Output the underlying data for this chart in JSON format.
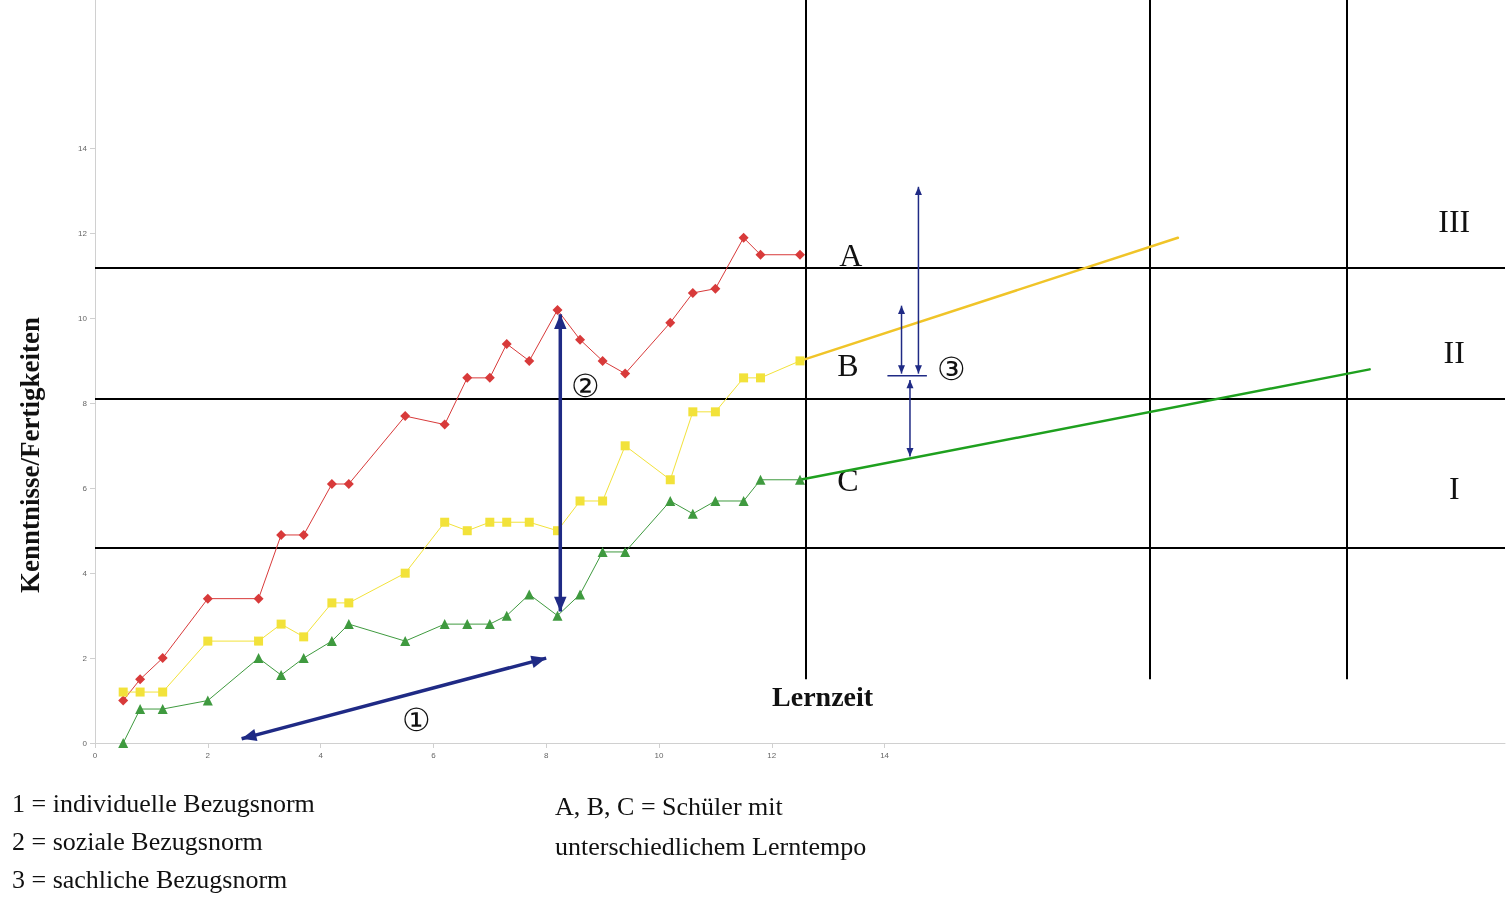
{
  "chart_data": {
    "type": "line",
    "xlabel": "Lernzeit",
    "ylabel": "Kenntnisse/Fertigkeiten",
    "xlim": [
      0,
      25
    ],
    "xticks": [
      0,
      2,
      4,
      6,
      8,
      10,
      12,
      14
    ],
    "ylim": [
      0,
      17.5
    ],
    "yticks": [
      0,
      2,
      4,
      6,
      8,
      10,
      12,
      14
    ],
    "grid": false,
    "series": [
      {
        "color": "#d83a3a",
        "marker": "diamond",
        "x": [
          0.5,
          0.8,
          1.2,
          2.0,
          2.9,
          3.3,
          3.7,
          4.2,
          4.5,
          5.5,
          6.2,
          6.6,
          7.0,
          7.3,
          7.7,
          8.2,
          8.6,
          9.0,
          9.4,
          10.2,
          10.6,
          11.0,
          11.5,
          11.8,
          12.5
        ],
        "values": [
          1.0,
          1.5,
          2.0,
          3.4,
          3.4,
          4.9,
          4.9,
          6.1,
          6.1,
          7.7,
          7.5,
          8.6,
          8.6,
          9.4,
          9.0,
          10.2,
          9.5,
          9.0,
          8.7,
          9.9,
          10.6,
          10.7,
          11.9,
          11.5,
          11.5
        ]
      },
      {
        "color": "#f2e23a",
        "marker": "square",
        "x": [
          0.5,
          0.8,
          1.2,
          2.0,
          2.9,
          3.3,
          3.7,
          4.2,
          4.5,
          5.5,
          6.2,
          6.6,
          7.0,
          7.3,
          7.7,
          8.2,
          8.6,
          9.0,
          9.4,
          10.2,
          10.6,
          11.0,
          11.5,
          11.8,
          12.5
        ],
        "values": [
          1.2,
          1.2,
          1.2,
          2.4,
          2.4,
          2.8,
          2.5,
          3.3,
          3.3,
          4.0,
          5.2,
          5.0,
          5.2,
          5.2,
          5.2,
          5.0,
          5.7,
          5.7,
          7.0,
          6.2,
          7.8,
          7.8,
          8.6,
          8.6,
          9.0
        ]
      },
      {
        "color": "#3f9a3f",
        "marker": "triangle",
        "x": [
          0.5,
          0.8,
          1.2,
          2.0,
          2.9,
          3.3,
          3.7,
          4.2,
          4.5,
          5.5,
          6.2,
          6.6,
          7.0,
          7.3,
          7.7,
          8.2,
          8.6,
          9.0,
          9.4,
          10.2,
          10.6,
          11.0,
          11.5,
          11.8,
          12.5
        ],
        "values": [
          0.0,
          0.8,
          0.8,
          1.0,
          2.0,
          1.6,
          2.0,
          2.4,
          2.8,
          2.4,
          2.8,
          2.8,
          2.8,
          3.0,
          3.5,
          3.0,
          3.5,
          4.5,
          4.5,
          5.7,
          5.4,
          5.7,
          5.7,
          6.2,
          6.2
        ]
      },
      {
        "color": "#f0c428",
        "marker": "none",
        "x": [
          12.5,
          19.2
        ],
        "values": [
          9.0,
          11.9
        ]
      },
      {
        "color": "#1ea01e",
        "marker": "none",
        "x": [
          12.5,
          22.6
        ],
        "values": [
          6.2,
          8.8
        ]
      }
    ],
    "ref_lines": [
      {
        "axis": "y",
        "value": 11.2,
        "color": "#000000"
      },
      {
        "axis": "y",
        "value": 8.1,
        "color": "#000000"
      },
      {
        "axis": "y",
        "value": 4.6,
        "color": "#000000"
      },
      {
        "axis": "x",
        "value": 12.6,
        "color": "#000000"
      },
      {
        "axis": "x",
        "value": 18.7,
        "color": "#000000"
      },
      {
        "axis": "x",
        "value": 22.2,
        "color": "#000000"
      }
    ],
    "annotations": [
      "A",
      "B",
      "C",
      "III",
      "II",
      "I",
      "①",
      "②",
      {
        "text": "③",
        "x": 14.45,
        "y": 6.7
      },
      "1 = individuelle Bezugsnorm",
      "2 = soziale Bezugsnorm",
      "3 = sachliche Bezugsnorm",
      "A, B, C = Schüler mit unterschiedlichem Lerntempo"
    ]
  }
}
